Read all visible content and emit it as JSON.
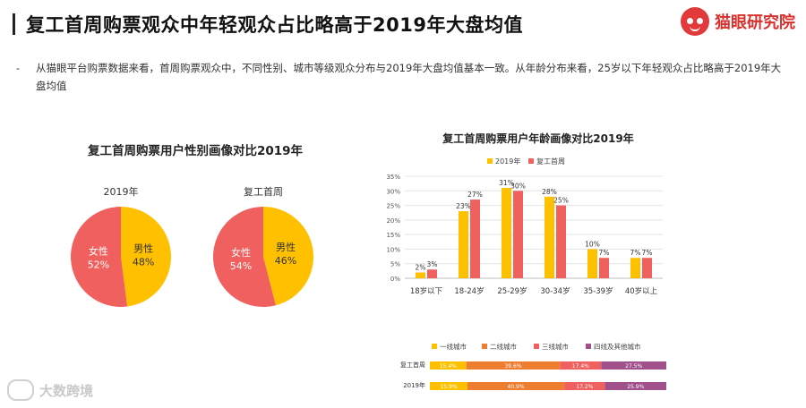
{
  "header": {
    "title": "复工首周购票观众中年轻观众占比略高于2019年大盘均值",
    "brand": "猫眼研究院"
  },
  "summary": {
    "bullet": "-",
    "text": "从猫眼平台购票数据来看，首周购票观众中，不同性别、城市等级观众分布与2019年大盘均值基本一致。从年龄分布来看，25岁以下年轻观众占比略高于2019年大盘均值"
  },
  "watermark": "大数跨境",
  "colors": {
    "male": "#FFC000",
    "female": "#F0605F",
    "tier1": "#FFC000",
    "tier2": "#ED7D31",
    "tier3": "#F0605F",
    "tier4": "#A0508A",
    "age2019": "#FFC000",
    "ageResume": "#F0605F"
  },
  "chart_data": [
    {
      "type": "pie",
      "title": "复工首周购票用户性别画像对比2019年",
      "pies": [
        {
          "name": "2019年",
          "slices": [
            {
              "label": "男性",
              "value": 48,
              "display": "48%"
            },
            {
              "label": "女性",
              "value": 52,
              "display": "52%"
            }
          ]
        },
        {
          "name": "复工首周",
          "slices": [
            {
              "label": "男性",
              "value": 46,
              "display": "46%"
            },
            {
              "label": "女性",
              "value": 54,
              "display": "54%"
            }
          ]
        }
      ]
    },
    {
      "type": "bar",
      "title": "复工首周购票用户年龄画像对比2019年",
      "categories": [
        "18岁以下",
        "18-24岁",
        "25-29岁",
        "30-34岁",
        "35-39岁",
        "40岁以上"
      ],
      "series": [
        {
          "name": "2019年",
          "values": [
            2,
            23,
            31,
            28,
            10,
            7
          ],
          "labels": [
            "2%",
            "23%",
            "31%",
            "28%",
            "10%",
            "7%"
          ]
        },
        {
          "name": "复工首周",
          "values": [
            3,
            27,
            30,
            25,
            7,
            7
          ],
          "labels": [
            "3%",
            "27%",
            "30%",
            "25%",
            "7%",
            "7%"
          ]
        }
      ],
      "yticks": [
        "0%",
        "5%",
        "10%",
        "15%",
        "20%",
        "25%",
        "30%",
        "35%"
      ],
      "ylim": [
        0,
        35
      ],
      "grid": true,
      "legend": "top"
    },
    {
      "type": "bar",
      "stacked": true,
      "horizontal": true,
      "title": "",
      "legend_entries": [
        "一线城市",
        "二线城市",
        "三线城市",
        "四线及其他城市"
      ],
      "categories": [
        "复工首周",
        "2019年"
      ],
      "rows": [
        {
          "name": "复工首周",
          "values": [
            15.4,
            39.6,
            17.4,
            27.5
          ],
          "labels": [
            "15.4%",
            "39.6%",
            "17.4%",
            "27.5%"
          ]
        },
        {
          "name": "2019年",
          "values": [
            15.9,
            40.9,
            17.2,
            25.9
          ],
          "labels": [
            "15.9%",
            "40.9%",
            "17.2%",
            "25.9%"
          ]
        }
      ]
    }
  ]
}
